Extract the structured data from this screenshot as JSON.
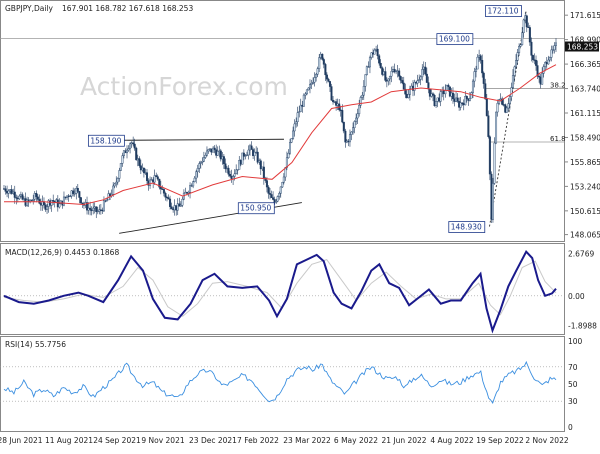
{
  "watermark": "ActionForex.com",
  "chart_data": [
    {
      "type": "candlestick",
      "title": "GBPJPY,Daily",
      "ohlc_header": "167.901 168.782 167.618 168.253",
      "last_price": "168.253",
      "yticks": [
        "171.615",
        "168.990",
        "166.365",
        "163.740",
        "161.115",
        "158.490",
        "155.865",
        "153.240",
        "150.615",
        "148.065"
      ],
      "ylim": [
        147.7,
        172.6
      ],
      "xlabels": [
        "28 Jun 2021",
        "11 Aug 2021",
        "24 Sep 2021",
        "9 Nov 2021",
        "23 Dec 2021",
        "7 Feb 2022",
        "23 Mar 2022",
        "6 May 2022",
        "21 Jun 2022",
        "4 Aug 2022",
        "19 Sep 2022",
        "2 Nov 2022"
      ],
      "fib_labels": [
        "38.2",
        "61.8"
      ],
      "fib_values": [
        163.74,
        158.0
      ],
      "annotations": [
        {
          "label": "158.190",
          "value": 158.19
        },
        {
          "label": "150.950",
          "value": 150.95
        },
        {
          "label": "169.100",
          "value": 169.1
        },
        {
          "label": "172.110",
          "value": 172.11
        },
        {
          "label": "148.930",
          "value": 148.93
        }
      ],
      "close_path": [
        [
          0,
          153.0
        ],
        [
          8,
          152.7
        ],
        [
          16,
          152.0
        ],
        [
          24,
          151.4
        ],
        [
          32,
          152.2
        ],
        [
          40,
          151.0
        ],
        [
          48,
          151.8
        ],
        [
          56,
          151.2
        ],
        [
          64,
          152.3
        ],
        [
          72,
          153.0
        ],
        [
          80,
          151.3
        ],
        [
          88,
          150.7
        ],
        [
          96,
          150.5
        ],
        [
          104,
          151.8
        ],
        [
          112,
          153.3
        ],
        [
          118,
          156.0
        ],
        [
          124,
          157.5
        ],
        [
          128,
          158.1
        ],
        [
          134,
          156.2
        ],
        [
          140,
          154.8
        ],
        [
          146,
          153.6
        ],
        [
          152,
          154.2
        ],
        [
          158,
          153.1
        ],
        [
          164,
          152.0
        ],
        [
          170,
          151.1
        ],
        [
          176,
          150.9
        ],
        [
          182,
          152.3
        ],
        [
          188,
          153.4
        ],
        [
          194,
          155.0
        ],
        [
          200,
          156.2
        ],
        [
          206,
          157.0
        ],
        [
          212,
          157.2
        ],
        [
          218,
          156.5
        ],
        [
          224,
          155.2
        ],
        [
          230,
          154.4
        ],
        [
          236,
          155.5
        ],
        [
          242,
          156.8
        ],
        [
          248,
          157.2
        ],
        [
          254,
          156.5
        ],
        [
          260,
          155.0
        ],
        [
          266,
          152.5
        ],
        [
          272,
          151.4
        ],
        [
          278,
          153.0
        ],
        [
          284,
          155.5
        ],
        [
          290,
          158.6
        ],
        [
          296,
          161.0
        ],
        [
          302,
          162.6
        ],
        [
          308,
          163.8
        ],
        [
          314,
          165.6
        ],
        [
          320,
          167.5
        ],
        [
          326,
          164.5
        ],
        [
          332,
          162.0
        ],
        [
          338,
          161.8
        ],
        [
          344,
          157.8
        ],
        [
          350,
          158.9
        ],
        [
          356,
          161.3
        ],
        [
          362,
          163.8
        ],
        [
          368,
          167.0
        ],
        [
          374,
          168.0
        ],
        [
          380,
          166.0
        ],
        [
          386,
          164.0
        ],
        [
          392,
          166.0
        ],
        [
          398,
          165.5
        ],
        [
          404,
          163.0
        ],
        [
          410,
          163.6
        ],
        [
          416,
          164.5
        ],
        [
          422,
          166.0
        ],
        [
          428,
          163.5
        ],
        [
          434,
          162.2
        ],
        [
          440,
          163.0
        ],
        [
          446,
          163.8
        ],
        [
          452,
          162.8
        ],
        [
          458,
          162.0
        ],
        [
          464,
          162.5
        ],
        [
          470,
          163.0
        ],
        [
          476,
          166.5
        ],
        [
          480,
          167.2
        ],
        [
          484,
          163.4
        ],
        [
          488,
          158.5
        ],
        [
          491,
          149.3
        ],
        [
          495,
          161.0
        ],
        [
          500,
          163.0
        ],
        [
          505,
          161.5
        ],
        [
          510,
          163.0
        ],
        [
          515,
          166.5
        ],
        [
          520,
          168.5
        ],
        [
          524,
          171.9
        ],
        [
          528,
          170.0
        ],
        [
          532,
          167.0
        ],
        [
          536,
          166.2
        ],
        [
          540,
          164.2
        ],
        [
          544,
          166.0
        ],
        [
          548,
          167.2
        ],
        [
          552,
          167.5
        ],
        [
          556,
          168.25
        ]
      ],
      "ma_path": [
        [
          0,
          151.6
        ],
        [
          40,
          151.6
        ],
        [
          80,
          151.3
        ],
        [
          100,
          151.8
        ],
        [
          120,
          152.8
        ],
        [
          150,
          153.6
        ],
        [
          180,
          152.2
        ],
        [
          210,
          153.4
        ],
        [
          240,
          154.3
        ],
        [
          270,
          154.0
        ],
        [
          290,
          155.8
        ],
        [
          310,
          159.0
        ],
        [
          330,
          161.6
        ],
        [
          350,
          162.0
        ],
        [
          370,
          162.3
        ],
        [
          390,
          163.4
        ],
        [
          420,
          163.8
        ],
        [
          440,
          163.6
        ],
        [
          460,
          163.4
        ],
        [
          480,
          162.8
        ],
        [
          500,
          162.4
        ],
        [
          520,
          163.8
        ],
        [
          540,
          165.4
        ],
        [
          556,
          166.3
        ]
      ]
    },
    {
      "type": "line",
      "title": "MACD(12,26,9) 0.4453 0.1868",
      "yticks": [
        "2.6769",
        "0.00",
        "-1.8988"
      ],
      "ylim": [
        -2.3,
        3.1
      ],
      "macd": [
        [
          0,
          0.0
        ],
        [
          15,
          -0.4
        ],
        [
          30,
          -0.5
        ],
        [
          45,
          -0.3
        ],
        [
          60,
          0.0
        ],
        [
          75,
          0.2
        ],
        [
          85,
          0.0
        ],
        [
          100,
          -0.4
        ],
        [
          115,
          1.0
        ],
        [
          128,
          2.5
        ],
        [
          140,
          1.6
        ],
        [
          150,
          -0.2
        ],
        [
          162,
          -1.4
        ],
        [
          175,
          -1.5
        ],
        [
          188,
          -0.5
        ],
        [
          200,
          1.0
        ],
        [
          212,
          1.4
        ],
        [
          225,
          0.6
        ],
        [
          240,
          0.5
        ],
        [
          255,
          0.6
        ],
        [
          267,
          -0.3
        ],
        [
          275,
          -1.3
        ],
        [
          285,
          -0.2
        ],
        [
          295,
          2.0
        ],
        [
          305,
          2.3
        ],
        [
          315,
          2.6
        ],
        [
          322,
          2.2
        ],
        [
          332,
          0.2
        ],
        [
          340,
          -0.5
        ],
        [
          350,
          -0.8
        ],
        [
          360,
          0.3
        ],
        [
          370,
          1.6
        ],
        [
          378,
          2.0
        ],
        [
          388,
          0.8
        ],
        [
          398,
          0.5
        ],
        [
          408,
          -0.6
        ],
        [
          418,
          -0.1
        ],
        [
          428,
          0.4
        ],
        [
          440,
          -0.5
        ],
        [
          450,
          -0.3
        ],
        [
          460,
          -0.3
        ],
        [
          472,
          0.8
        ],
        [
          480,
          1.4
        ],
        [
          486,
          -0.8
        ],
        [
          492,
          -2.2
        ],
        [
          500,
          -0.9
        ],
        [
          508,
          0.6
        ],
        [
          516,
          1.6
        ],
        [
          526,
          2.8
        ],
        [
          532,
          2.4
        ],
        [
          538,
          1.0
        ],
        [
          545,
          0.0
        ],
        [
          552,
          0.15
        ],
        [
          556,
          0.45
        ]
      ],
      "signal": [
        [
          0,
          -0.1
        ],
        [
          20,
          -0.3
        ],
        [
          40,
          -0.4
        ],
        [
          60,
          -0.2
        ],
        [
          80,
          0.1
        ],
        [
          100,
          -0.1
        ],
        [
          120,
          0.6
        ],
        [
          135,
          1.8
        ],
        [
          150,
          1.0
        ],
        [
          165,
          -0.7
        ],
        [
          180,
          -1.3
        ],
        [
          195,
          -0.5
        ],
        [
          210,
          0.8
        ],
        [
          225,
          0.9
        ],
        [
          245,
          0.6
        ],
        [
          265,
          0.2
        ],
        [
          280,
          -0.8
        ],
        [
          295,
          0.8
        ],
        [
          310,
          2.0
        ],
        [
          325,
          2.3
        ],
        [
          340,
          1.0
        ],
        [
          355,
          -0.3
        ],
        [
          370,
          0.8
        ],
        [
          385,
          1.5
        ],
        [
          400,
          0.6
        ],
        [
          415,
          -0.2
        ],
        [
          430,
          0.1
        ],
        [
          445,
          -0.2
        ],
        [
          460,
          -0.2
        ],
        [
          478,
          0.8
        ],
        [
          490,
          -0.6
        ],
        [
          500,
          -1.2
        ],
        [
          510,
          0.0
        ],
        [
          522,
          1.8
        ],
        [
          535,
          2.2
        ],
        [
          545,
          0.9
        ],
        [
          556,
          0.19
        ]
      ]
    },
    {
      "type": "line",
      "title": "RSI(14) 55.7756",
      "yticks": [
        "100",
        "70",
        "50",
        "30",
        "0"
      ],
      "ylim": [
        0,
        100
      ],
      "rsi": [
        [
          0,
          45
        ],
        [
          10,
          40
        ],
        [
          20,
          52
        ],
        [
          30,
          38
        ],
        [
          40,
          44
        ],
        [
          50,
          36
        ],
        [
          60,
          46
        ],
        [
          70,
          40
        ],
        [
          80,
          47
        ],
        [
          90,
          35
        ],
        [
          100,
          46
        ],
        [
          110,
          55
        ],
        [
          118,
          66
        ],
        [
          124,
          72
        ],
        [
          130,
          60
        ],
        [
          140,
          48
        ],
        [
          150,
          52
        ],
        [
          160,
          40
        ],
        [
          170,
          36
        ],
        [
          176,
          33
        ],
        [
          185,
          50
        ],
        [
          195,
          62
        ],
        [
          205,
          66
        ],
        [
          212,
          60
        ],
        [
          220,
          48
        ],
        [
          230,
          52
        ],
        [
          240,
          60
        ],
        [
          250,
          54
        ],
        [
          260,
          40
        ],
        [
          268,
          30
        ],
        [
          275,
          36
        ],
        [
          285,
          56
        ],
        [
          295,
          66
        ],
        [
          305,
          70
        ],
        [
          312,
          66
        ],
        [
          320,
          74
        ],
        [
          328,
          56
        ],
        [
          336,
          46
        ],
        [
          344,
          38
        ],
        [
          352,
          50
        ],
        [
          362,
          62
        ],
        [
          370,
          70
        ],
        [
          378,
          62
        ],
        [
          386,
          56
        ],
        [
          396,
          58
        ],
        [
          404,
          46
        ],
        [
          412,
          56
        ],
        [
          420,
          60
        ],
        [
          430,
          48
        ],
        [
          440,
          55
        ],
        [
          450,
          50
        ],
        [
          460,
          52
        ],
        [
          470,
          60
        ],
        [
          480,
          64
        ],
        [
          488,
          35
        ],
        [
          492,
          26
        ],
        [
          500,
          52
        ],
        [
          510,
          62
        ],
        [
          518,
          66
        ],
        [
          526,
          74
        ],
        [
          534,
          58
        ],
        [
          542,
          48
        ],
        [
          550,
          56
        ],
        [
          556,
          55.8
        ]
      ]
    }
  ]
}
